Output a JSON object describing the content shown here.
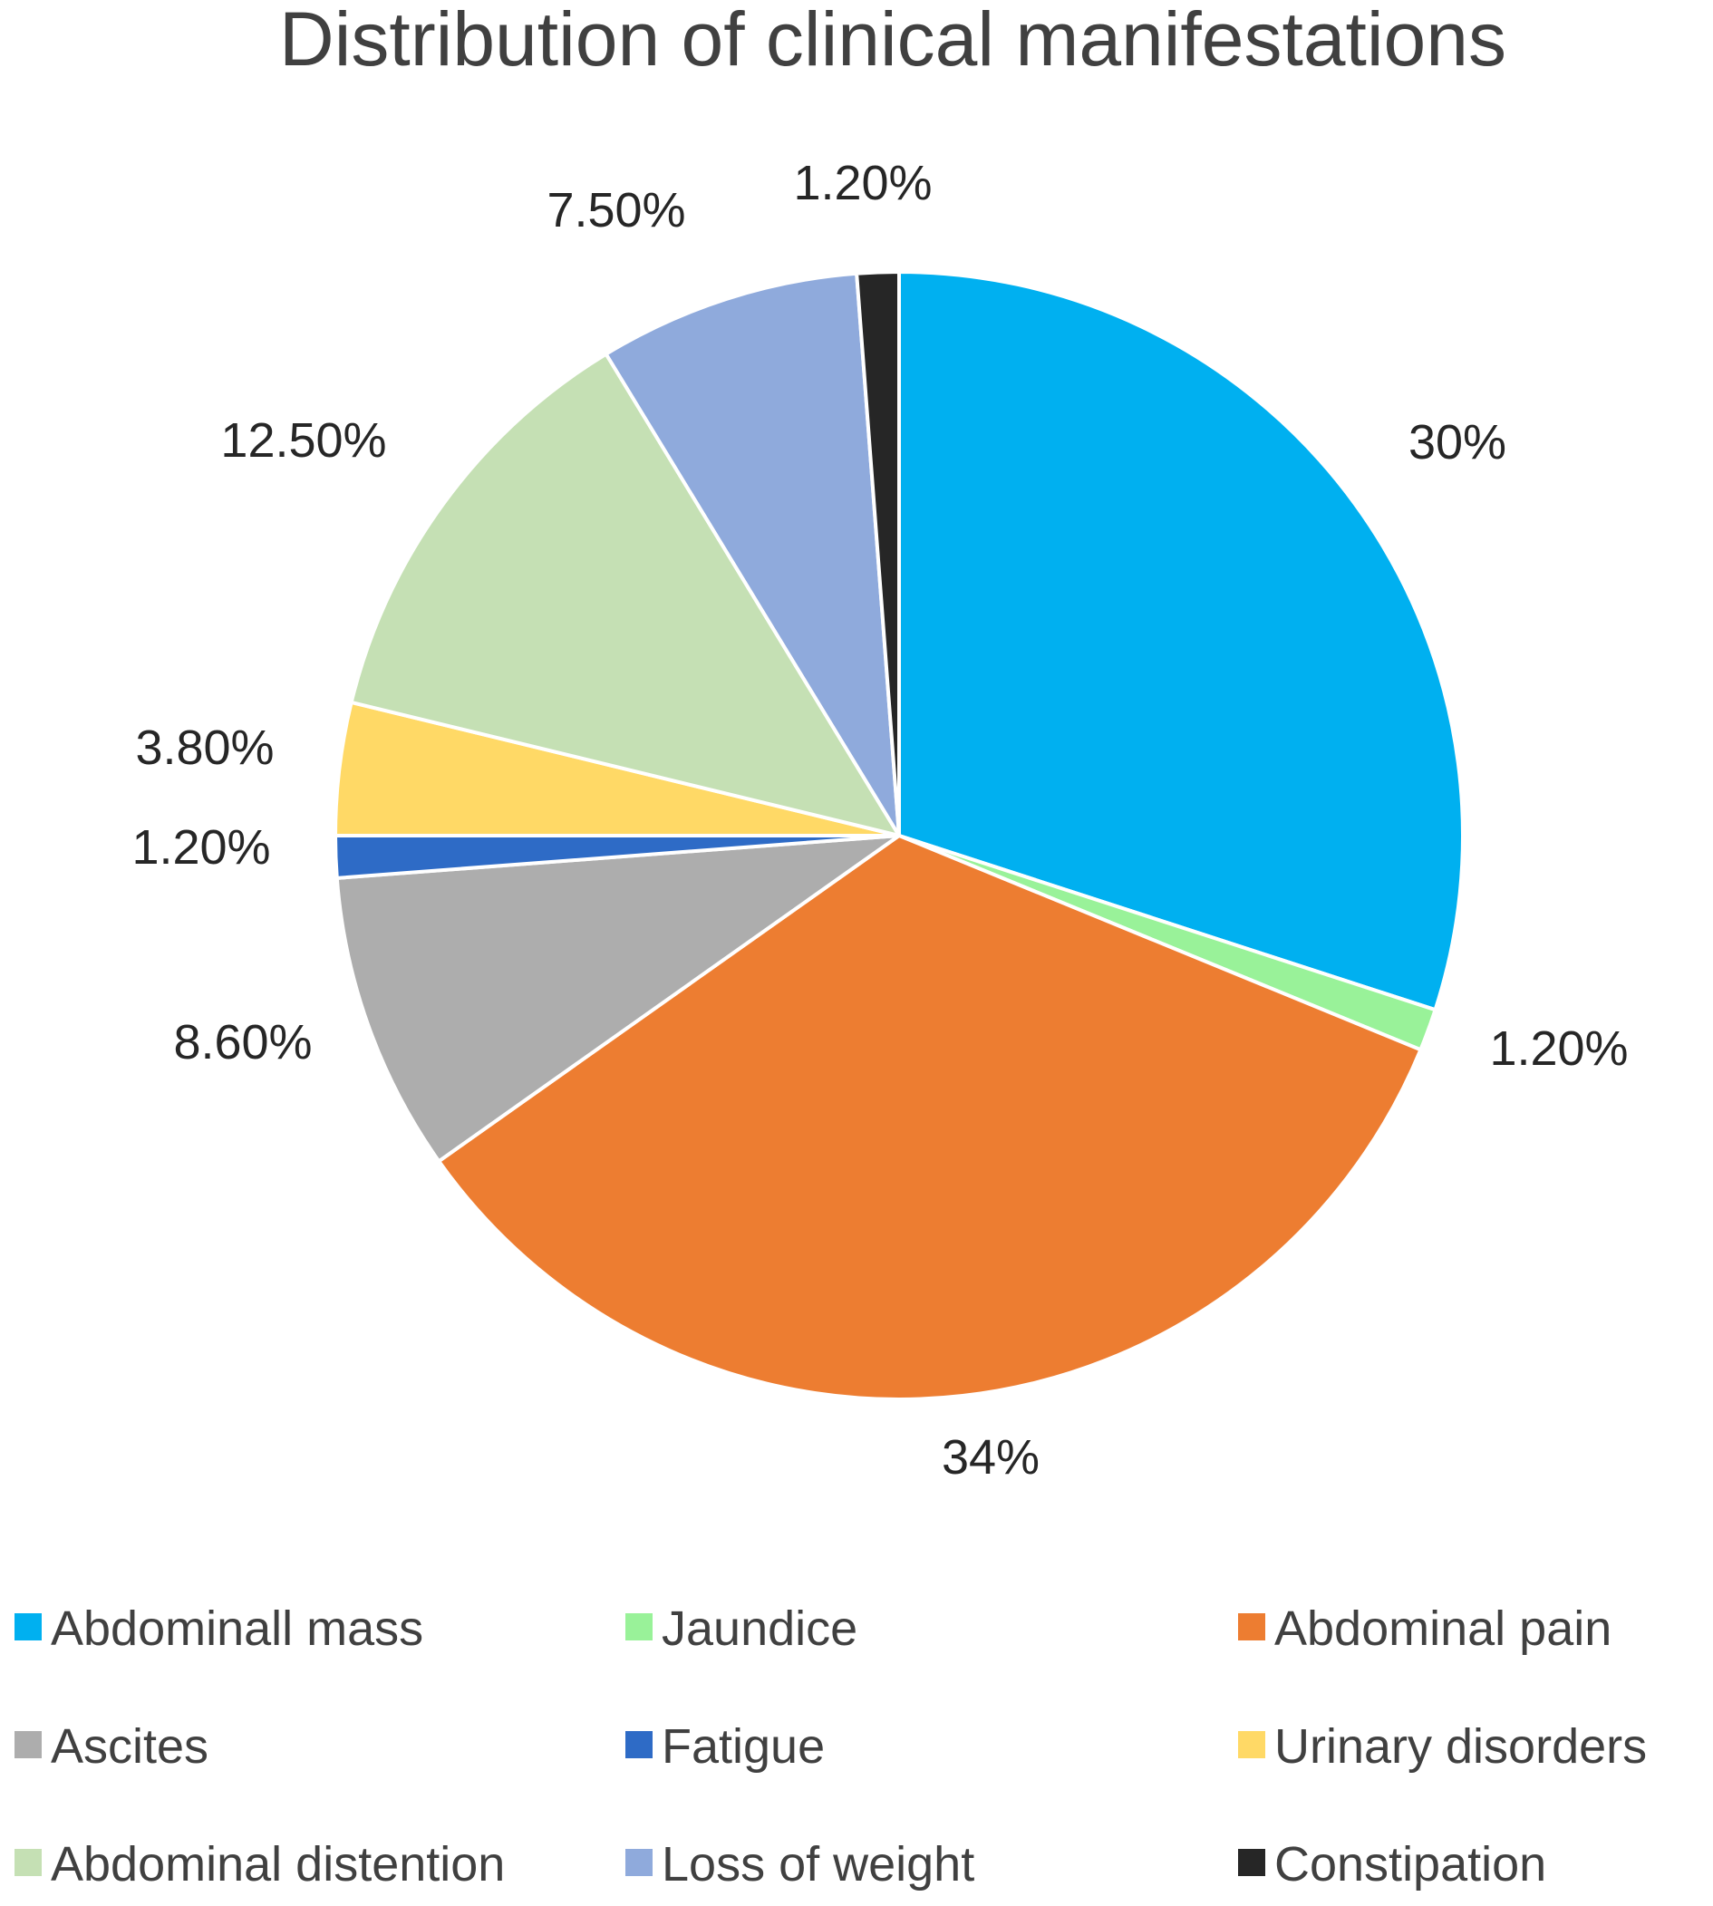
{
  "chart_data": {
    "type": "pie",
    "title": "Distribution of clinical manifestations",
    "legend_position": "bottom",
    "slices": [
      {
        "label": "Abdominall mass",
        "value": 30,
        "value_label": "30%",
        "color": "#00B0F0"
      },
      {
        "label": "Jaundice",
        "value": 1.2,
        "value_label": "1.20%",
        "color": "#99F299"
      },
      {
        "label": "Abdominal pain",
        "value": 34,
        "value_label": "34%",
        "color": "#ED7D31"
      },
      {
        "label": "Ascites",
        "value": 8.6,
        "value_label": "8.60%",
        "color": "#ADADAD"
      },
      {
        "label": "Fatigue",
        "value": 1.2,
        "value_label": "1.20%",
        "color": "#2E6BC6"
      },
      {
        "label": "Urinary disorders",
        "value": 3.8,
        "value_label": "3.80%",
        "color": "#FFD966"
      },
      {
        "label": "Abdominal distention",
        "value": 12.5,
        "value_label": "12.50%",
        "color": "#C5E0B4"
      },
      {
        "label": "Loss of weight",
        "value": 7.5,
        "value_label": "7.50%",
        "color": "#8FAADC"
      },
      {
        "label": "Constipation",
        "value": 1.2,
        "value_label": "1.20%",
        "color": "#262626"
      }
    ]
  }
}
